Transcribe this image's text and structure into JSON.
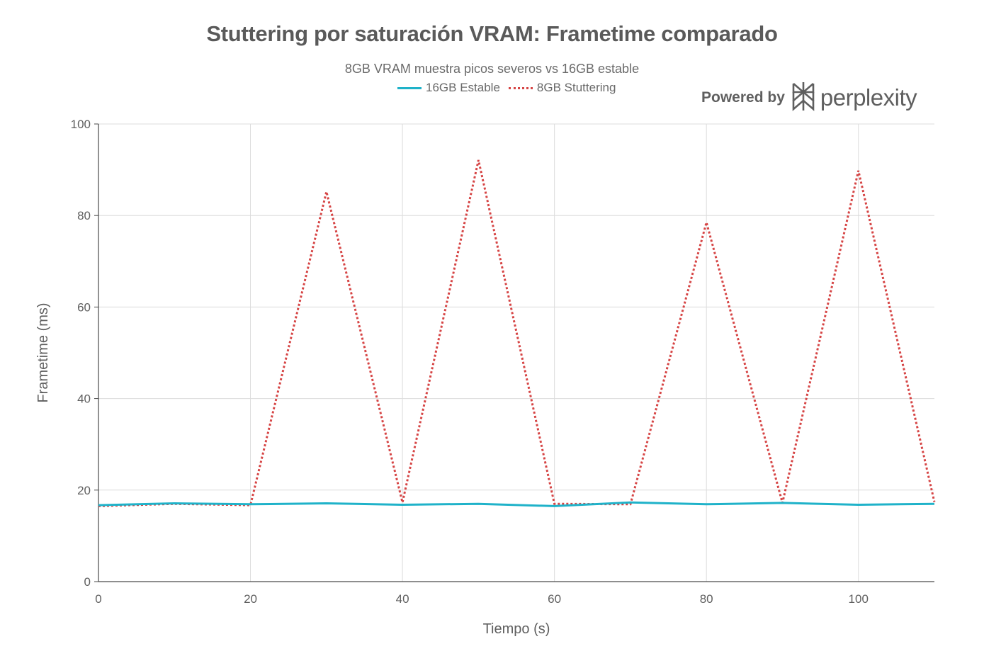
{
  "header": {
    "powered_by": "Powered by",
    "brand_name": "perplexity"
  },
  "chart_data": {
    "type": "line",
    "title": "Stuttering por saturación VRAM: Frametime comparado",
    "subtitle": "8GB VRAM muestra picos severos vs 16GB estable",
    "xlabel": "Tiempo (s)",
    "ylabel": "Frametime (ms)",
    "xlim": [
      0,
      110
    ],
    "ylim": [
      0,
      100
    ],
    "x_ticks": [
      0,
      20,
      40,
      60,
      80,
      100
    ],
    "y_ticks": [
      0,
      20,
      40,
      60,
      80,
      100
    ],
    "grid": true,
    "legend_position": "top-center",
    "x": [
      0,
      10,
      20,
      30,
      40,
      50,
      60,
      70,
      80,
      90,
      100,
      110
    ],
    "series": [
      {
        "name": "16GB Estable",
        "style": "solid",
        "color": "#1fb2c9",
        "values": [
          16.7,
          17.1,
          16.9,
          17.1,
          16.8,
          17.0,
          16.5,
          17.3,
          16.9,
          17.2,
          16.8,
          17.0
        ]
      },
      {
        "name": "8GB Stuttering",
        "style": "dotted",
        "color": "#d64545",
        "values": [
          16.5,
          17.0,
          16.7,
          85.2,
          17.3,
          92.1,
          17.0,
          16.9,
          78.5,
          17.2,
          89.8,
          17.4
        ]
      }
    ]
  }
}
